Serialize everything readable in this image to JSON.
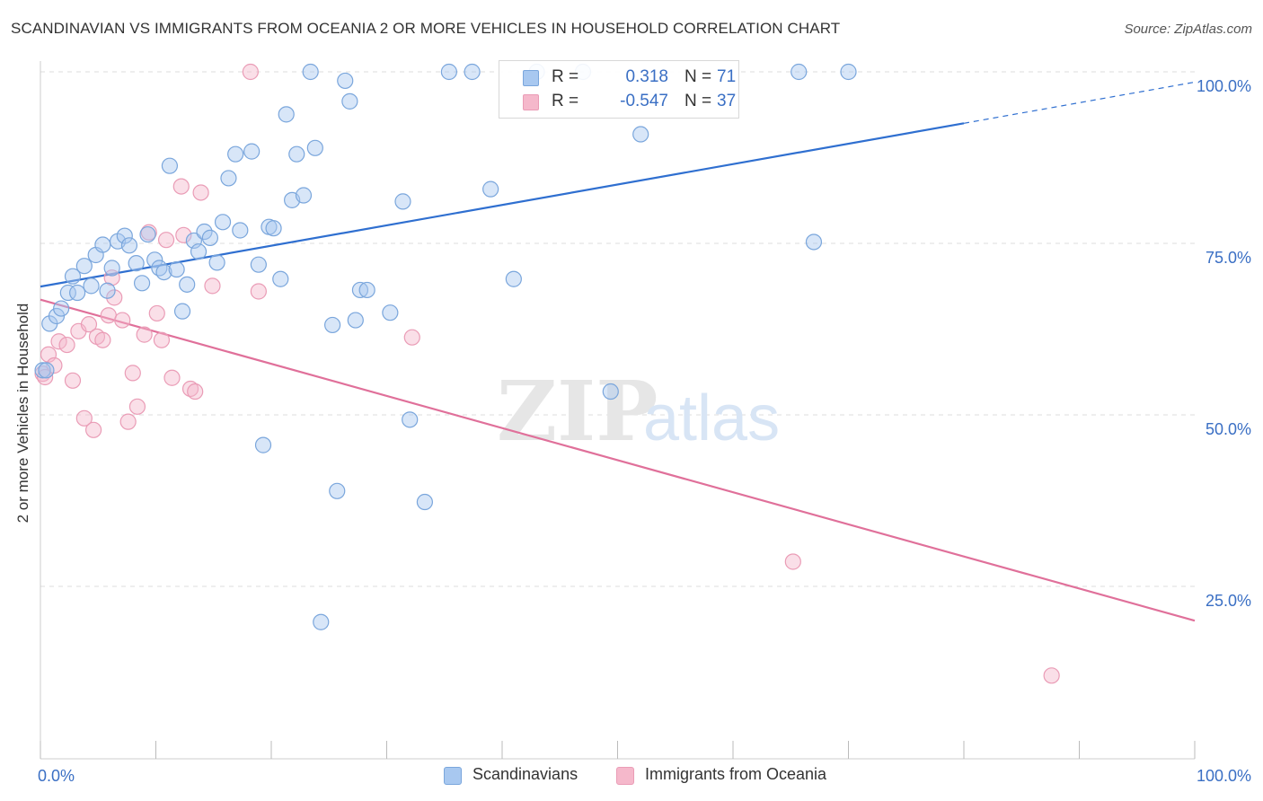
{
  "header": {
    "title": "SCANDINAVIAN VS IMMIGRANTS FROM OCEANIA 2 OR MORE VEHICLES IN HOUSEHOLD CORRELATION CHART",
    "source": "Source: ZipAtlas.com"
  },
  "watermark": {
    "zip": "ZIP",
    "atlas": "atlas"
  },
  "legend": {
    "rows": [
      {
        "r_label": "R =",
        "r_value": "0.318",
        "n_label": "N =",
        "n_value": "71",
        "color": "#a8c8f0"
      },
      {
        "r_label": "R =",
        "r_value": "-0.547",
        "n_label": "N =",
        "n_value": "37",
        "color": "#f5b8cb"
      }
    ]
  },
  "bottom_legend": {
    "items": [
      {
        "label": "Scandinavians",
        "color": "#a8c8f0"
      },
      {
        "label": "Immigrants from Oceania",
        "color": "#f5b8cb"
      }
    ]
  },
  "colors": {
    "blue_point_fill": "rgba(168,200,240,0.45)",
    "blue_point_stroke": "#7aa6dc",
    "blue_line": "#2f6fd0",
    "pink_point_fill": "rgba(245,184,203,0.45)",
    "pink_point_stroke": "#ea9cb6",
    "pink_line": "#e0709a",
    "tick_label": "#3a6fc4",
    "grid": "#dddddd"
  },
  "chart_data": {
    "type": "scatter",
    "title": "SCANDINAVIAN VS IMMIGRANTS FROM OCEANIA 2 OR MORE VEHICLES IN HOUSEHOLD CORRELATION CHART",
    "xlabel": "",
    "ylabel": "2 or more Vehicles in Household",
    "xlim": [
      0,
      100
    ],
    "ylim": [
      0,
      102
    ],
    "x_tick_labels": [
      "0.0%",
      "100.0%"
    ],
    "y_tick_labels": [
      {
        "value": 25,
        "label": "25.0%"
      },
      {
        "value": 50,
        "label": "50.0%"
      },
      {
        "value": 75,
        "label": "75.0%"
      },
      {
        "value": 100,
        "label": "100.0%"
      }
    ],
    "grid": true,
    "legend_position": "top-center",
    "series": [
      {
        "name": "Scandinavians",
        "points": [
          [
            0.2,
            56.5
          ],
          [
            0.8,
            63.3
          ],
          [
            1.4,
            64.4
          ],
          [
            1.8,
            65.5
          ],
          [
            2.4,
            67.8
          ],
          [
            2.8,
            70.2
          ],
          [
            3.2,
            67.8
          ],
          [
            3.8,
            71.7
          ],
          [
            4.4,
            68.8
          ],
          [
            4.8,
            73.3
          ],
          [
            5.4,
            74.8
          ],
          [
            5.8,
            68.1
          ],
          [
            6.2,
            71.4
          ],
          [
            6.7,
            75.3
          ],
          [
            7.3,
            76.1
          ],
          [
            7.7,
            74.7
          ],
          [
            8.3,
            72.1
          ],
          [
            8.8,
            69.2
          ],
          [
            9.3,
            76.3
          ],
          [
            9.9,
            72.6
          ],
          [
            10.3,
            71.4
          ],
          [
            10.7,
            70.8
          ],
          [
            11.2,
            86.3
          ],
          [
            11.8,
            71.2
          ],
          [
            12.3,
            65.1
          ],
          [
            12.7,
            69.0
          ],
          [
            13.3,
            75.4
          ],
          [
            13.7,
            73.8
          ],
          [
            14.2,
            76.7
          ],
          [
            14.7,
            75.8
          ],
          [
            15.3,
            72.2
          ],
          [
            15.8,
            78.1
          ],
          [
            16.3,
            84.5
          ],
          [
            16.9,
            88.0
          ],
          [
            17.3,
            76.9
          ],
          [
            18.3,
            88.4
          ],
          [
            18.9,
            71.9
          ],
          [
            19.3,
            45.6
          ],
          [
            19.8,
            77.4
          ],
          [
            20.2,
            77.2
          ],
          [
            20.8,
            69.8
          ],
          [
            21.3,
            93.8
          ],
          [
            21.8,
            81.3
          ],
          [
            22.2,
            88.0
          ],
          [
            22.8,
            82.0
          ],
          [
            23.4,
            100.0
          ],
          [
            23.8,
            88.9
          ],
          [
            24.3,
            19.8
          ],
          [
            25.3,
            63.1
          ],
          [
            25.7,
            38.9
          ],
          [
            26.4,
            98.7
          ],
          [
            26.8,
            95.7
          ],
          [
            27.3,
            63.8
          ],
          [
            27.7,
            68.2
          ],
          [
            28.3,
            68.2
          ],
          [
            30.3,
            64.9
          ],
          [
            31.4,
            81.1
          ],
          [
            32.0,
            49.3
          ],
          [
            33.3,
            37.3
          ],
          [
            35.4,
            100.0
          ],
          [
            37.4,
            100.0
          ],
          [
            39.0,
            82.9
          ],
          [
            41.0,
            69.8
          ],
          [
            43.0,
            100.0
          ],
          [
            47.0,
            100.0
          ],
          [
            49.4,
            53.4
          ],
          [
            52.0,
            90.9
          ],
          [
            65.7,
            100.0
          ],
          [
            67.0,
            75.2
          ],
          [
            70.0,
            100.0
          ],
          [
            0.5,
            56.5
          ]
        ]
      },
      {
        "name": "Immigrants from Oceania",
        "points": [
          [
            0.2,
            56.0
          ],
          [
            0.7,
            58.8
          ],
          [
            1.2,
            57.2
          ],
          [
            1.6,
            60.7
          ],
          [
            2.3,
            60.2
          ],
          [
            2.8,
            55.0
          ],
          [
            3.3,
            62.2
          ],
          [
            3.8,
            49.5
          ],
          [
            4.2,
            63.2
          ],
          [
            4.6,
            47.8
          ],
          [
            4.9,
            61.4
          ],
          [
            5.4,
            60.9
          ],
          [
            5.9,
            64.5
          ],
          [
            6.2,
            70.0
          ],
          [
            6.4,
            67.1
          ],
          [
            7.1,
            63.8
          ],
          [
            7.6,
            49.0
          ],
          [
            8.0,
            56.1
          ],
          [
            8.4,
            51.2
          ],
          [
            9.0,
            61.7
          ],
          [
            9.4,
            76.6
          ],
          [
            10.1,
            64.8
          ],
          [
            10.5,
            60.9
          ],
          [
            10.9,
            75.5
          ],
          [
            11.4,
            55.4
          ],
          [
            12.2,
            83.3
          ],
          [
            12.4,
            76.2
          ],
          [
            13.0,
            53.8
          ],
          [
            13.4,
            53.4
          ],
          [
            13.9,
            82.4
          ],
          [
            14.9,
            68.8
          ],
          [
            18.2,
            100.0
          ],
          [
            18.9,
            68.0
          ],
          [
            32.2,
            61.3
          ],
          [
            65.2,
            28.6
          ],
          [
            87.6,
            12.0
          ],
          [
            0.4,
            55.5
          ]
        ]
      }
    ],
    "trend_lines": [
      {
        "name": "Scandinavians",
        "solid": [
          [
            0,
            68.7
          ],
          [
            80,
            92.5
          ]
        ],
        "dashed": [
          [
            80,
            92.5
          ],
          [
            100,
            98.5
          ]
        ]
      },
      {
        "name": "Immigrants from Oceania",
        "solid": [
          [
            0,
            66.8
          ],
          [
            100,
            20.0
          ]
        ]
      }
    ]
  }
}
